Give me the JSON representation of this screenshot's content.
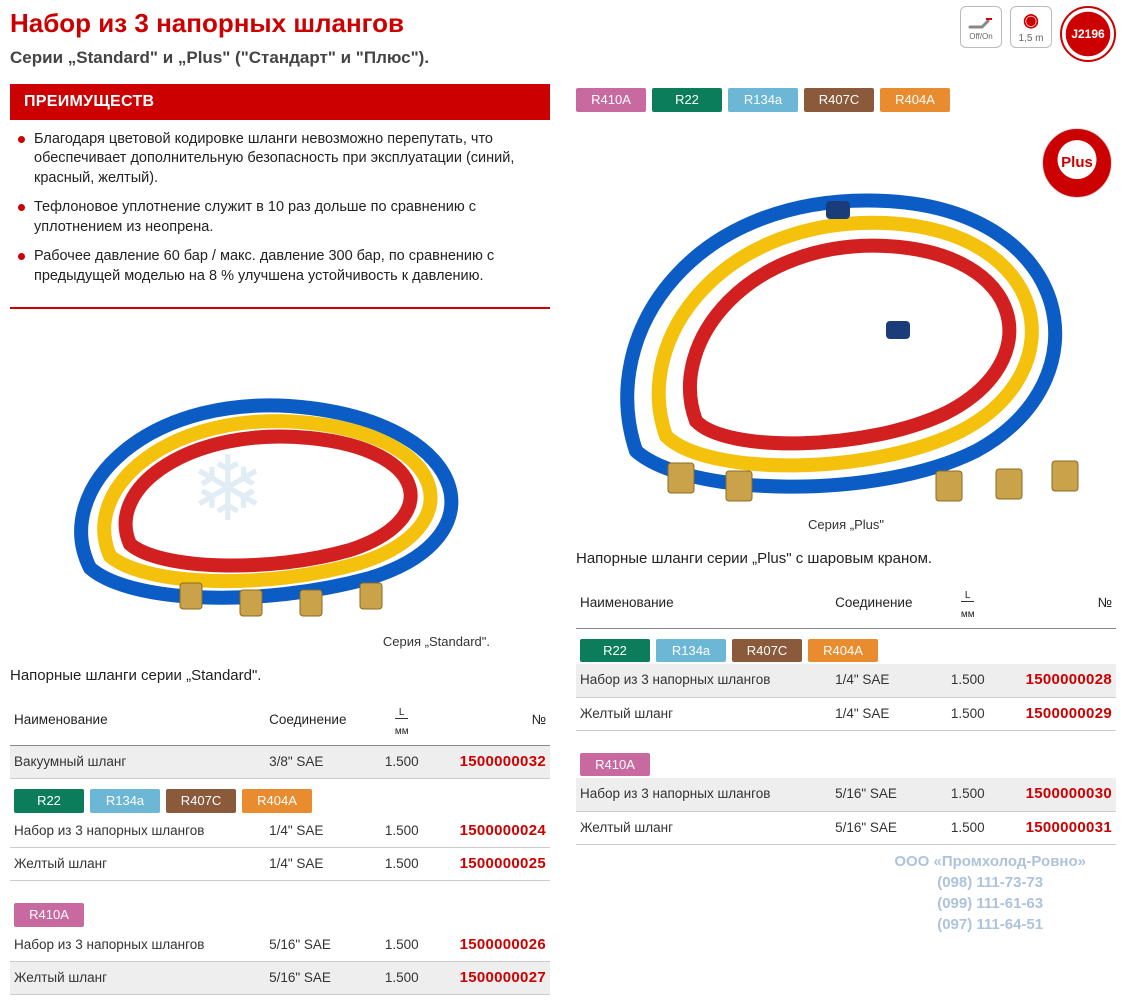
{
  "title": "Набор из 3 напорных шлангов",
  "subtitle": "Серии „Standard\" и „Plus\" (\"Стандарт\" и \"Плюс\").",
  "top_icons": {
    "valve": {
      "off": "Off",
      "on": "On"
    },
    "length": {
      "spiral": "◎",
      "text": "1,5 m"
    },
    "cert": "J2196"
  },
  "advantages_header": "ПРЕИМУЩЕСТВ",
  "advantages": [
    "Благодаря цветовой кодировке шланги невозможно перепутать, что обеспечивает дополнительную безопасность при эксплуатации (синий, красный, желтый).",
    "Тефлоновое уплотнение служит в 10 раз дольше по сравнению с уплотнением из неопрена.",
    "Рабочее давление 60 бар / макс. давление 300 бар, по сравнению с предыдущей моделью на 8 % улучшена устойчивость к давлению."
  ],
  "refrigerant_tags": {
    "R410A": {
      "label": "R410A",
      "color": "#c86aa0"
    },
    "R22": {
      "label": "R22",
      "color": "#0b7d5a"
    },
    "R134a": {
      "label": "R134a",
      "color": "#6cb6d6"
    },
    "R407C": {
      "label": "R407C",
      "color": "#8a5a3a"
    },
    "R404A": {
      "label": "R404A",
      "color": "#e98c2f"
    }
  },
  "plus_badge": "Plus",
  "hose_colors": {
    "red": "#d21f1f",
    "yellow": "#f4c20d",
    "blue": "#0b5cc4",
    "brass": "#caa24a"
  },
  "captions": {
    "standard": "Серия „Standard\".",
    "plus": "Серия „Plus\""
  },
  "table_titles": {
    "standard": "Напорные шланги серии „Standard\".",
    "plus": "Напорные шланги серии „Plus\" с шаровым краном."
  },
  "columns": {
    "name": "Наименование",
    "conn": "Соединение",
    "len_top": "L",
    "len_bot": "мм",
    "no": "№"
  },
  "standard_table": {
    "rows_top": [
      {
        "name": "Вакуумный шланг",
        "conn": "3/8\" SAE",
        "len": "1.500",
        "no": "1500000032",
        "shade": true
      }
    ],
    "tag_group_1": [
      "R22",
      "R134a",
      "R407C",
      "R404A"
    ],
    "rows_mid": [
      {
        "name": "Набор из 3 напорных шлангов",
        "conn": "1/4\" SAE",
        "len": "1.500",
        "no": "1500000024"
      },
      {
        "name": "Желтый шланг",
        "conn": "1/4\" SAE",
        "len": "1.500",
        "no": "1500000025"
      }
    ],
    "tag_group_2": [
      "R410A"
    ],
    "rows_bot": [
      {
        "name": "Набор из 3 напорных шлангов",
        "conn": "5/16\" SAE",
        "len": "1.500",
        "no": "1500000026"
      },
      {
        "name": "Желтый шланг",
        "conn": "5/16\" SAE",
        "len": "1.500",
        "no": "1500000027",
        "shade": true
      }
    ]
  },
  "plus_table": {
    "tag_group_1": [
      "R22",
      "R134a",
      "R407C",
      "R404A"
    ],
    "rows_mid": [
      {
        "name": "Набор из 3 напорных шлангов",
        "conn": "1/4\" SAE",
        "len": "1.500",
        "no": "1500000028",
        "shade": true
      },
      {
        "name": "Желтый шланг",
        "conn": "1/4\" SAE",
        "len": "1.500",
        "no": "1500000029"
      }
    ],
    "tag_group_2": [
      "R410A"
    ],
    "rows_bot": [
      {
        "name": "Набор из 3 напорных шлангов",
        "conn": "5/16\" SAE",
        "len": "1.500",
        "no": "1500000030",
        "shade": true
      },
      {
        "name": "Желтый шланг",
        "conn": "5/16\" SAE",
        "len": "1.500",
        "no": "1500000031"
      }
    ]
  },
  "watermark": {
    "line1": "ООО «Промхолод-Ровно»",
    "line2": "(098) 111-73-73",
    "line3": "(099) 111-61-63",
    "line4": "(097) 111-64-51"
  }
}
